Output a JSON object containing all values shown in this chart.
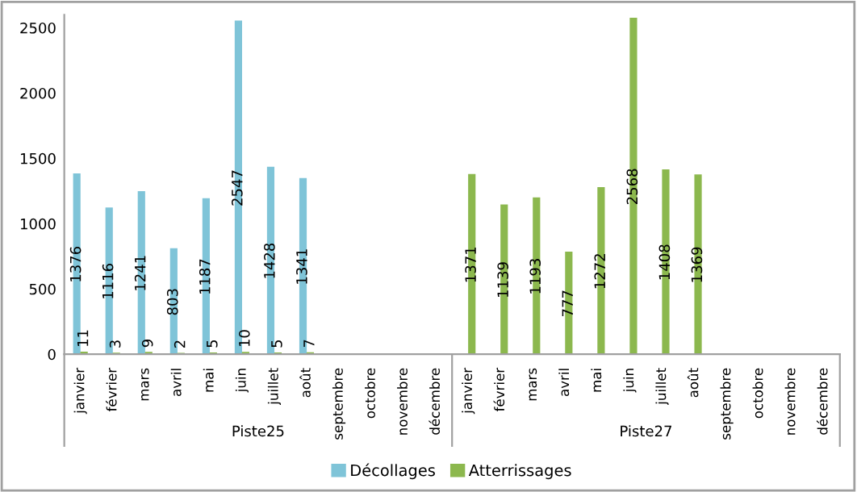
{
  "chart_data": {
    "type": "bar",
    "categories": [
      "janvier",
      "février",
      "mars",
      "avril",
      "mai",
      "juin",
      "juillet",
      "août",
      "septembre",
      "octobre",
      "novembre",
      "décembre",
      "janvier",
      "février",
      "mars",
      "avril",
      "mai",
      "juin",
      "juillet",
      "août",
      "septembre",
      "octobre",
      "novembre",
      "décembre"
    ],
    "annotations": [
      "Piste25",
      "Piste27"
    ],
    "series": [
      {
        "name": "Décollages",
        "color": "#7fc4d8",
        "values": [
          1376,
          1116,
          1241,
          803,
          1187,
          2547,
          1428,
          1341,
          null,
          null,
          null,
          null,
          null,
          null,
          null,
          null,
          null,
          null,
          null,
          null,
          null,
          null,
          null,
          null
        ]
      },
      {
        "name": "Atterrissages",
        "color": "#8cb84e",
        "values": [
          11,
          3,
          9,
          2,
          5,
          10,
          5,
          7,
          null,
          null,
          null,
          null,
          1371,
          1139,
          1193,
          777,
          1272,
          2568,
          1408,
          1369,
          null,
          null,
          null,
          null
        ]
      }
    ],
    "ylim": [
      0,
      2600
    ],
    "yticks": [
      0,
      500,
      1000,
      1500,
      2000,
      2500
    ],
    "data_labels": true,
    "grid": false,
    "legend": "bottom"
  }
}
